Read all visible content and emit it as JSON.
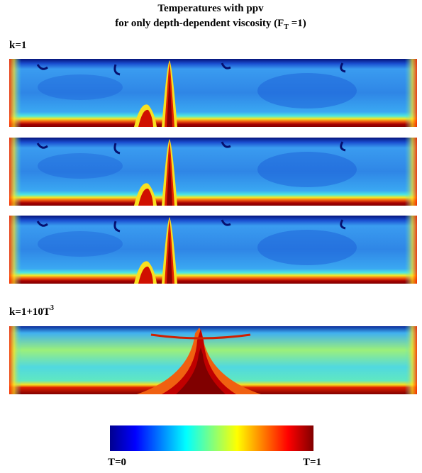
{
  "title": {
    "line1": "Temperatures with ppv",
    "line2": {
      "main": "for only depth-dependent viscosity (F",
      "sub": "T",
      "tail": " =1)"
    }
  },
  "groups": [
    {
      "label": {
        "main": "k=1"
      }
    },
    {
      "label": {
        "main": "k=1+10T",
        "sup": "3"
      }
    }
  ],
  "colorbar": {
    "min_label": "T=0",
    "max_label": "T=1"
  }
}
